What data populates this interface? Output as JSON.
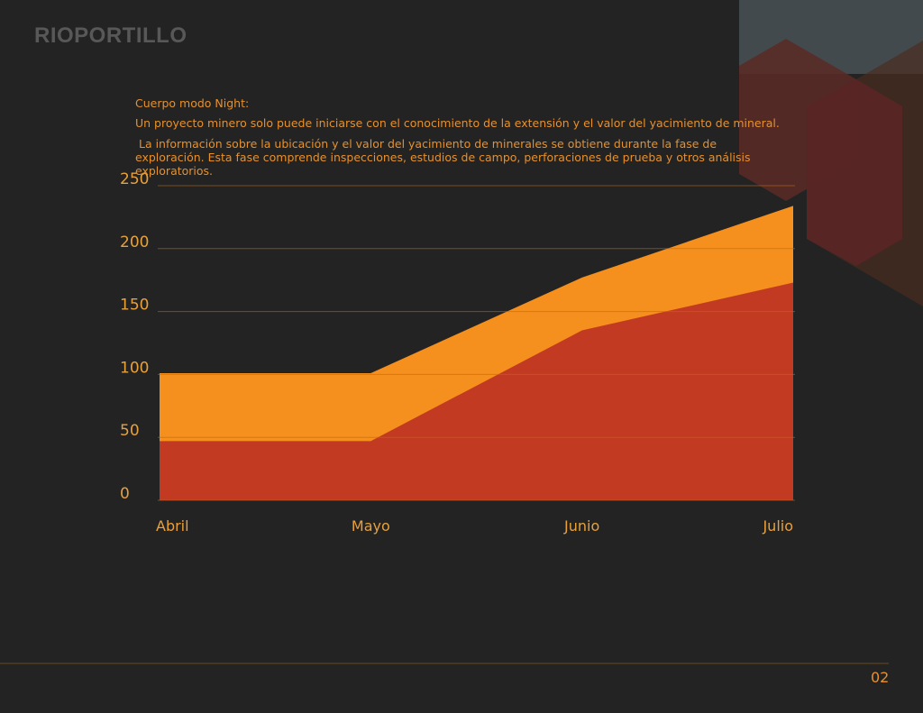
{
  "brand": "RIOPORTILLO",
  "body": [
    "Cuerpo modo Night:",
    "Un proyecto minero solo puede iniciarse con el conocimiento de la extensión y el valor del yacimiento de mineral.",
    " La información sobre la ubicación y el valor del yacimiento de minerales se obtiene durante la fase de exploración. Esta fase comprende inspecciones, estudios de campo, perforaciones de prueba y otros análisis exploratorios."
  ],
  "page_number": "02",
  "chart_data": {
    "type": "area",
    "categories": [
      "Abril",
      "Mayo",
      "Junio",
      "Julio"
    ],
    "series": [
      {
        "color": "#f5901e",
        "values": [
          101,
          101,
          177,
          234
        ]
      },
      {
        "color": "#c33a22",
        "values": [
          47,
          47,
          135,
          173
        ]
      }
    ],
    "ylim": [
      0,
      250
    ],
    "yticks": [
      0,
      50,
      100,
      150,
      200,
      250
    ],
    "grid": true
  }
}
